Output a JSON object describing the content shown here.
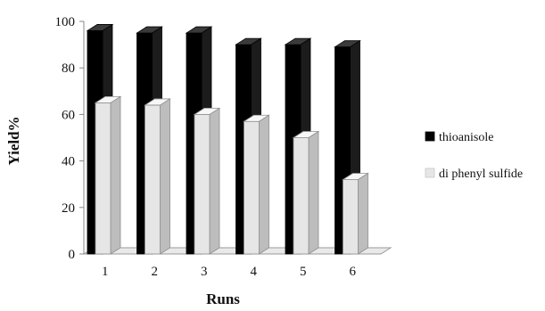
{
  "chart_data": {
    "type": "bar",
    "categories": [
      "1",
      "2",
      "3",
      "4",
      "5",
      "6"
    ],
    "series": [
      {
        "name": "thioanisole",
        "values": [
          96,
          95,
          95,
          90,
          90,
          89
        ],
        "color": "#000000"
      },
      {
        "name": "di phenyl sulfide",
        "values": [
          65,
          64,
          60,
          57,
          50,
          32
        ],
        "color": "#e6e6e6"
      }
    ],
    "xlabel": "Runs",
    "ylabel": "Yield%",
    "ylim": [
      0,
      100
    ],
    "yticks": [
      "0",
      "20",
      "40",
      "60",
      "80",
      "100"
    ],
    "grid": false,
    "legend_position": "right",
    "style": "3d-column"
  }
}
